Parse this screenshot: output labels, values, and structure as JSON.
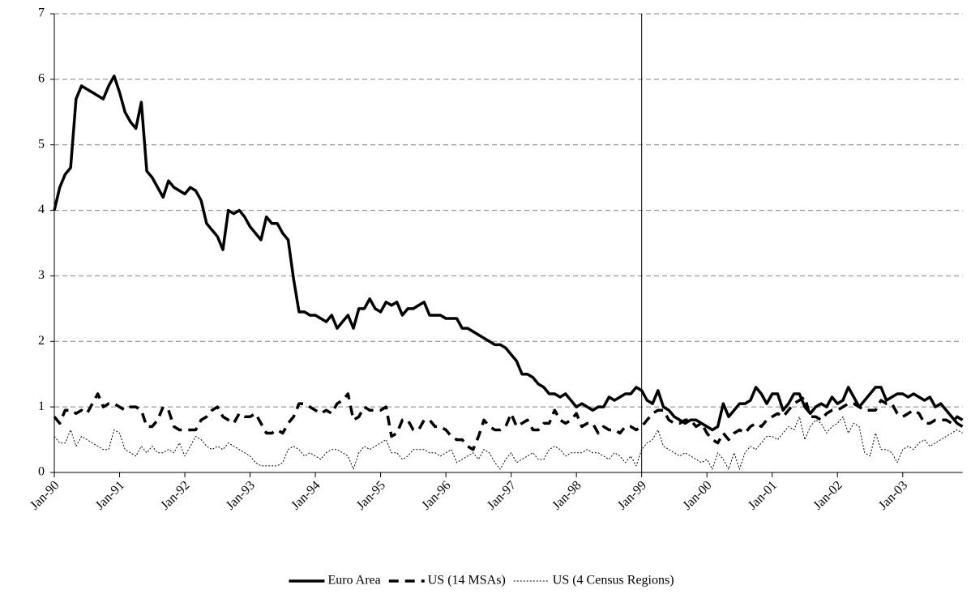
{
  "chart_data": {
    "type": "line",
    "categories": [
      "Jan-90",
      null,
      null,
      null,
      null,
      null,
      null,
      null,
      null,
      null,
      null,
      null,
      "Jan-91",
      null,
      null,
      null,
      null,
      null,
      null,
      null,
      null,
      null,
      null,
      null,
      "Jan-92",
      null,
      null,
      null,
      null,
      null,
      null,
      null,
      null,
      null,
      null,
      null,
      "Jan-93",
      null,
      null,
      null,
      null,
      null,
      null,
      null,
      null,
      null,
      null,
      null,
      "Jan-94",
      null,
      null,
      null,
      null,
      null,
      null,
      null,
      null,
      null,
      null,
      null,
      "Jan-95",
      null,
      null,
      null,
      null,
      null,
      null,
      null,
      null,
      null,
      null,
      null,
      "Jan-96",
      null,
      null,
      null,
      null,
      null,
      null,
      null,
      null,
      null,
      null,
      null,
      "Jan-97",
      null,
      null,
      null,
      null,
      null,
      null,
      null,
      null,
      null,
      null,
      null,
      "Jan-98",
      null,
      null,
      null,
      null,
      null,
      null,
      null,
      null,
      null,
      null,
      null,
      "Jan-99",
      null,
      null,
      null,
      null,
      null,
      null,
      null,
      null,
      null,
      null,
      null,
      "Jan-00",
      null,
      null,
      null,
      null,
      null,
      null,
      null,
      null,
      null,
      null,
      null,
      "Jan-01",
      null,
      null,
      null,
      null,
      null,
      null,
      null,
      null,
      null,
      null,
      null,
      "Jan-02",
      null,
      null,
      null,
      null,
      null,
      null,
      null,
      null,
      null,
      null,
      null,
      "Jan-03",
      null,
      null,
      null,
      null,
      null,
      null,
      null,
      null,
      null,
      null,
      null
    ],
    "series": [
      {
        "name": "Euro Area",
        "color": "#000000",
        "dash": "solid",
        "values": [
          4.0,
          4.35,
          4.55,
          4.65,
          5.7,
          5.9,
          5.85,
          5.8,
          5.75,
          5.7,
          5.9,
          6.05,
          5.8,
          5.5,
          5.35,
          5.25,
          5.65,
          4.6,
          4.5,
          4.35,
          4.2,
          4.45,
          4.35,
          4.3,
          4.25,
          4.35,
          4.3,
          4.15,
          3.8,
          3.7,
          3.6,
          3.4,
          4.0,
          3.95,
          4.0,
          3.9,
          3.75,
          3.65,
          3.55,
          3.9,
          3.8,
          3.8,
          3.65,
          3.55,
          2.95,
          2.45,
          2.45,
          2.4,
          2.4,
          2.35,
          2.3,
          2.4,
          2.2,
          2.3,
          2.4,
          2.2,
          2.5,
          2.5,
          2.65,
          2.5,
          2.45,
          2.6,
          2.55,
          2.6,
          2.4,
          2.5,
          2.5,
          2.55,
          2.6,
          2.4,
          2.4,
          2.4,
          2.35,
          2.35,
          2.35,
          2.2,
          2.2,
          2.15,
          2.1,
          2.05,
          2.0,
          1.95,
          1.95,
          1.9,
          1.8,
          1.7,
          1.5,
          1.5,
          1.45,
          1.35,
          1.3,
          1.2,
          1.2,
          1.15,
          1.2,
          1.1,
          1.0,
          1.05,
          1.0,
          0.95,
          1.0,
          1.0,
          1.15,
          1.1,
          1.15,
          1.2,
          1.2,
          1.3,
          1.25,
          1.1,
          1.05,
          1.25,
          1.0,
          0.95,
          0.85,
          0.8,
          0.75,
          0.8,
          0.8,
          0.75,
          0.7,
          0.65,
          0.7,
          1.05,
          0.85,
          0.95,
          1.05,
          1.05,
          1.1,
          1.3,
          1.2,
          1.05,
          1.2,
          1.2,
          0.95,
          1.05,
          1.2,
          1.2,
          1.0,
          0.9,
          1.0,
          1.05,
          1.0,
          1.15,
          1.05,
          1.1,
          1.3,
          1.15,
          1.0,
          1.1,
          1.2,
          1.3,
          1.3,
          1.1,
          1.15,
          1.2,
          1.2,
          1.15,
          1.2,
          1.15,
          1.1,
          1.15,
          1.0,
          1.05,
          0.95,
          0.85,
          0.75,
          0.7
        ]
      },
      {
        "name": "US (14 MSAs)",
        "color": "#000000",
        "dash": "dashed",
        "values": [
          0.85,
          0.75,
          0.95,
          0.95,
          0.9,
          0.95,
          0.9,
          1.05,
          1.2,
          1.0,
          1.05,
          1.05,
          1.0,
          0.95,
          1.0,
          1.0,
          0.95,
          0.7,
          0.7,
          0.8,
          1.0,
          0.95,
          0.7,
          0.65,
          0.65,
          0.65,
          0.65,
          0.8,
          0.85,
          0.95,
          1.0,
          0.85,
          0.8,
          0.75,
          0.9,
          0.85,
          0.85,
          0.9,
          0.75,
          0.6,
          0.6,
          0.65,
          0.6,
          0.75,
          0.85,
          1.05,
          1.05,
          1.0,
          0.95,
          0.9,
          0.95,
          0.9,
          1.05,
          1.1,
          1.2,
          0.8,
          0.85,
          1.0,
          0.95,
          0.95,
          0.95,
          1.0,
          0.55,
          0.6,
          0.8,
          0.8,
          0.65,
          0.65,
          0.8,
          0.8,
          0.7,
          0.7,
          0.65,
          0.55,
          0.5,
          0.5,
          0.4,
          0.35,
          0.55,
          0.8,
          0.7,
          0.65,
          0.65,
          0.7,
          0.9,
          0.7,
          0.75,
          0.8,
          0.65,
          0.65,
          0.75,
          0.75,
          0.95,
          0.8,
          0.75,
          0.8,
          0.9,
          0.7,
          0.75,
          0.75,
          0.6,
          0.7,
          0.65,
          0.65,
          0.6,
          0.7,
          0.7,
          0.65,
          0.7,
          0.8,
          0.9,
          0.95,
          0.95,
          0.8,
          0.75,
          0.75,
          0.8,
          0.8,
          0.7,
          0.75,
          0.6,
          0.5,
          0.45,
          0.6,
          0.5,
          0.6,
          0.65,
          0.6,
          0.7,
          0.75,
          0.7,
          0.8,
          0.85,
          0.9,
          0.85,
          0.95,
          1.05,
          1.1,
          1.15,
          0.85,
          0.85,
          0.8,
          0.9,
          0.95,
          0.95,
          1.0,
          1.05,
          1.05,
          1.0,
          0.95,
          0.95,
          0.95,
          1.1,
          1.05,
          1.05,
          0.9,
          0.85,
          0.9,
          0.95,
          0.9,
          0.75,
          0.75,
          0.8,
          0.8,
          0.8,
          0.75,
          0.85,
          0.8
        ]
      },
      {
        "name": "US (4 Census Regions)",
        "color": "#000000",
        "dash": "dotted",
        "values": [
          0.55,
          0.45,
          0.45,
          0.65,
          0.4,
          0.55,
          0.5,
          0.45,
          0.4,
          0.35,
          0.35,
          0.65,
          0.6,
          0.35,
          0.3,
          0.25,
          0.4,
          0.3,
          0.4,
          0.3,
          0.3,
          0.35,
          0.3,
          0.45,
          0.25,
          0.4,
          0.55,
          0.5,
          0.4,
          0.35,
          0.4,
          0.35,
          0.45,
          0.4,
          0.35,
          0.3,
          0.25,
          0.15,
          0.1,
          0.1,
          0.1,
          0.1,
          0.15,
          0.35,
          0.4,
          0.35,
          0.25,
          0.3,
          0.25,
          0.2,
          0.3,
          0.35,
          0.35,
          0.3,
          0.25,
          0.05,
          0.3,
          0.4,
          0.35,
          0.4,
          0.45,
          0.5,
          0.3,
          0.3,
          0.2,
          0.25,
          0.35,
          0.35,
          0.35,
          0.3,
          0.3,
          0.25,
          0.3,
          0.35,
          0.15,
          0.2,
          0.25,
          0.3,
          0.2,
          0.35,
          0.3,
          0.15,
          0.05,
          0.2,
          0.3,
          0.15,
          0.2,
          0.25,
          0.3,
          0.2,
          0.2,
          0.35,
          0.4,
          0.35,
          0.25,
          0.3,
          0.3,
          0.3,
          0.35,
          0.3,
          0.3,
          0.25,
          0.2,
          0.3,
          0.25,
          0.15,
          0.25,
          0.1,
          0.35,
          0.45,
          0.5,
          0.65,
          0.4,
          0.35,
          0.3,
          0.25,
          0.3,
          0.25,
          0.2,
          0.15,
          0.2,
          0.05,
          0.3,
          0.2,
          0.05,
          0.3,
          0.05,
          0.3,
          0.4,
          0.35,
          0.45,
          0.55,
          0.55,
          0.5,
          0.6,
          0.7,
          0.65,
          0.85,
          0.5,
          0.7,
          0.8,
          0.75,
          0.6,
          0.7,
          0.75,
          0.85,
          0.6,
          0.75,
          0.7,
          0.3,
          0.25,
          0.6,
          0.35,
          0.35,
          0.3,
          0.15,
          0.35,
          0.4,
          0.35,
          0.45,
          0.5,
          0.4,
          0.45,
          0.5,
          0.55,
          0.6,
          0.65,
          0.6
        ]
      }
    ],
    "ylim": [
      0,
      7
    ],
    "yticks": [
      0,
      1,
      2,
      3,
      4,
      5,
      6,
      7
    ],
    "grid": true,
    "vline": "Jan-99",
    "legend": "bottom"
  }
}
